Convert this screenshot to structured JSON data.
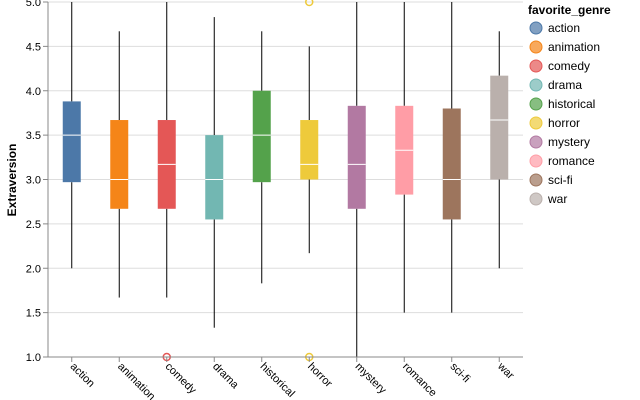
{
  "chart_data": {
    "type": "boxplot",
    "title": "",
    "xlabel": "",
    "ylabel": "Extraversion",
    "ylim": [
      1.0,
      5.0
    ],
    "yticks": [
      "1.0",
      "1.5",
      "2.0",
      "2.5",
      "3.0",
      "3.5",
      "4.0",
      "4.5",
      "5.0"
    ],
    "grid": true,
    "legend": {
      "title": "favorite_genre",
      "placement": "right"
    },
    "categories": [
      "action",
      "animation",
      "comedy",
      "drama",
      "historical",
      "horror",
      "mystery",
      "romance",
      "sci-fi",
      "war"
    ],
    "colors": [
      "#4c78a8",
      "#f58518",
      "#e45756",
      "#72b7b2",
      "#54a24b",
      "#eeca3b",
      "#b279a2",
      "#ff9da6",
      "#9d755d",
      "#bab0ac"
    ],
    "boxes": [
      {
        "genre": "action",
        "min": 2.0,
        "q1": 2.97,
        "median": 3.5,
        "q3": 3.88,
        "max": 5.0,
        "outliers": []
      },
      {
        "genre": "animation",
        "min": 1.67,
        "q1": 2.67,
        "median": 3.0,
        "q3": 3.67,
        "max": 4.67,
        "outliers": []
      },
      {
        "genre": "comedy",
        "min": 1.67,
        "q1": 2.67,
        "median": 3.17,
        "q3": 3.67,
        "max": 5.0,
        "outliers": [
          1.0
        ]
      },
      {
        "genre": "drama",
        "min": 1.33,
        "q1": 2.55,
        "median": 3.0,
        "q3": 3.5,
        "max": 4.83,
        "outliers": []
      },
      {
        "genre": "historical",
        "min": 1.83,
        "q1": 2.97,
        "median": 3.5,
        "q3": 4.0,
        "max": 4.67,
        "outliers": []
      },
      {
        "genre": "horror",
        "min": 2.17,
        "q1": 3.0,
        "median": 3.17,
        "q3": 3.67,
        "max": 4.5,
        "outliers": [
          5.0,
          1.0
        ]
      },
      {
        "genre": "mystery",
        "min": 1.0,
        "q1": 2.67,
        "median": 3.17,
        "q3": 3.83,
        "max": 5.0,
        "outliers": []
      },
      {
        "genre": "romance",
        "min": 1.5,
        "q1": 2.83,
        "median": 3.33,
        "q3": 3.83,
        "max": 5.0,
        "outliers": []
      },
      {
        "genre": "sci-fi",
        "min": 1.5,
        "q1": 2.55,
        "median": 3.0,
        "q3": 3.8,
        "max": 5.0,
        "outliers": []
      },
      {
        "genre": "war",
        "min": 2.0,
        "q1": 3.0,
        "median": 3.67,
        "q3": 4.17,
        "max": 4.67,
        "outliers": []
      }
    ]
  }
}
